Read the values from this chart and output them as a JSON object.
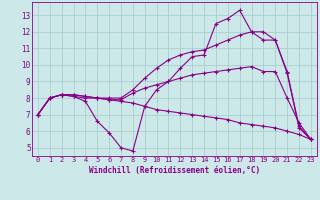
{
  "title": "",
  "xlabel": "Windchill (Refroidissement éolien,°C)",
  "ylabel": "",
  "background_color": "#cce8e8",
  "grid_color": "#aacece",
  "line_color": "#880088",
  "xlim": [
    -0.5,
    23.5
  ],
  "ylim": [
    4.5,
    13.8
  ],
  "yticks": [
    5,
    6,
    7,
    8,
    9,
    10,
    11,
    12,
    13
  ],
  "xticks": [
    0,
    1,
    2,
    3,
    4,
    5,
    6,
    7,
    8,
    9,
    10,
    11,
    12,
    13,
    14,
    15,
    16,
    17,
    18,
    19,
    20,
    21,
    22,
    23
  ],
  "series": [
    [
      7.0,
      8.0,
      8.2,
      8.1,
      7.8,
      6.6,
      5.9,
      5.0,
      4.8,
      7.5,
      8.5,
      9.0,
      9.8,
      10.5,
      10.6,
      12.5,
      12.8,
      13.3,
      12.0,
      12.0,
      11.5,
      9.6,
      6.3,
      5.5
    ],
    [
      7.0,
      8.0,
      8.2,
      8.1,
      8.0,
      8.0,
      8.0,
      8.0,
      8.5,
      9.2,
      9.8,
      10.3,
      10.6,
      10.8,
      10.9,
      11.2,
      11.5,
      11.8,
      12.0,
      11.5,
      11.5,
      9.5,
      6.2,
      5.5
    ],
    [
      7.0,
      8.0,
      8.2,
      8.2,
      8.1,
      8.0,
      7.9,
      7.9,
      8.3,
      8.6,
      8.8,
      9.0,
      9.2,
      9.4,
      9.5,
      9.6,
      9.7,
      9.8,
      9.9,
      9.6,
      9.6,
      8.0,
      6.5,
      5.5
    ],
    [
      7.0,
      8.0,
      8.2,
      8.2,
      8.1,
      8.0,
      7.9,
      7.8,
      7.7,
      7.5,
      7.3,
      7.2,
      7.1,
      7.0,
      6.9,
      6.8,
      6.7,
      6.5,
      6.4,
      6.3,
      6.2,
      6.0,
      5.8,
      5.5
    ]
  ]
}
